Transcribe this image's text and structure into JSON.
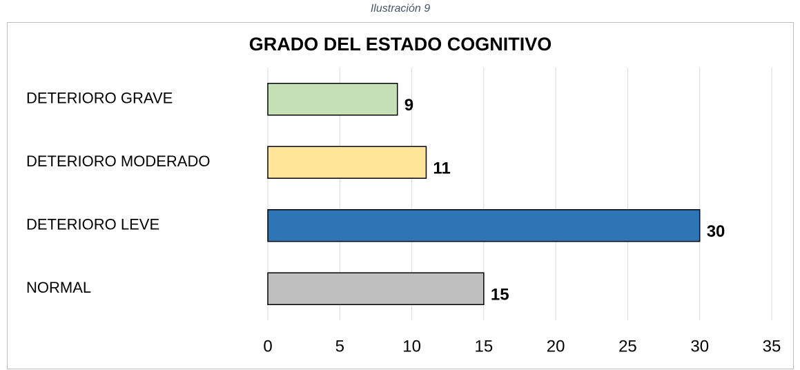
{
  "caption": "Ilustración 9",
  "chart_data": {
    "type": "barh",
    "title": "GRADO DEL ESTADO COGNITIVO",
    "categories": [
      "DETERIORO GRAVE",
      "DETERIORO MODERADO",
      "DETERIORO LEVE",
      "NORMAL"
    ],
    "values": [
      9,
      11,
      30,
      15
    ],
    "colors": [
      "#c5e0b4",
      "#ffe699",
      "#2e75b6",
      "#bfbfbf"
    ],
    "xlim": [
      0,
      35
    ],
    "xticks": [
      0,
      5,
      10,
      15,
      20,
      25,
      30,
      35
    ],
    "grid": true
  }
}
